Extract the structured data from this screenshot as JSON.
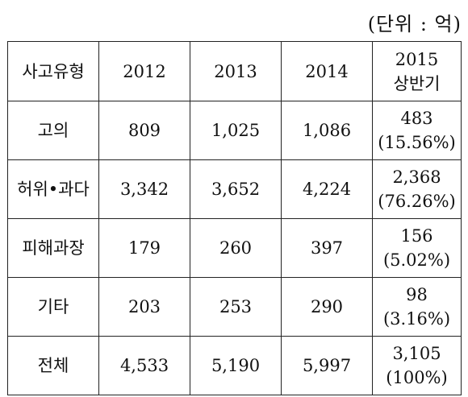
{
  "unit_label": "(단위 : 억)",
  "table": {
    "headers": [
      "사고유형",
      "2012",
      "2013",
      "2014"
    ],
    "last_header": [
      "2015",
      "상반기"
    ],
    "rows": [
      {
        "type": "고의",
        "y2012": "809",
        "y2013": "1,025",
        "y2014": "1,086",
        "h2015": "483",
        "h2015_pct": "(15.56%)"
      },
      {
        "type": "허위•과다",
        "y2012": "3,342",
        "y2013": "3,652",
        "y2014": "4,224",
        "h2015": "2,368",
        "h2015_pct": "(76.26%)"
      },
      {
        "type": "피해과장",
        "y2012": "179",
        "y2013": "260",
        "y2014": "397",
        "h2015": "156",
        "h2015_pct": "(5.02%)"
      },
      {
        "type": "기타",
        "y2012": "203",
        "y2013": "253",
        "y2014": "290",
        "h2015": "98",
        "h2015_pct": "(3.16%)"
      },
      {
        "type": "전체",
        "y2012": "4,533",
        "y2013": "5,190",
        "y2014": "5,997",
        "h2015": "3,105",
        "h2015_pct": "(100%)"
      }
    ]
  }
}
